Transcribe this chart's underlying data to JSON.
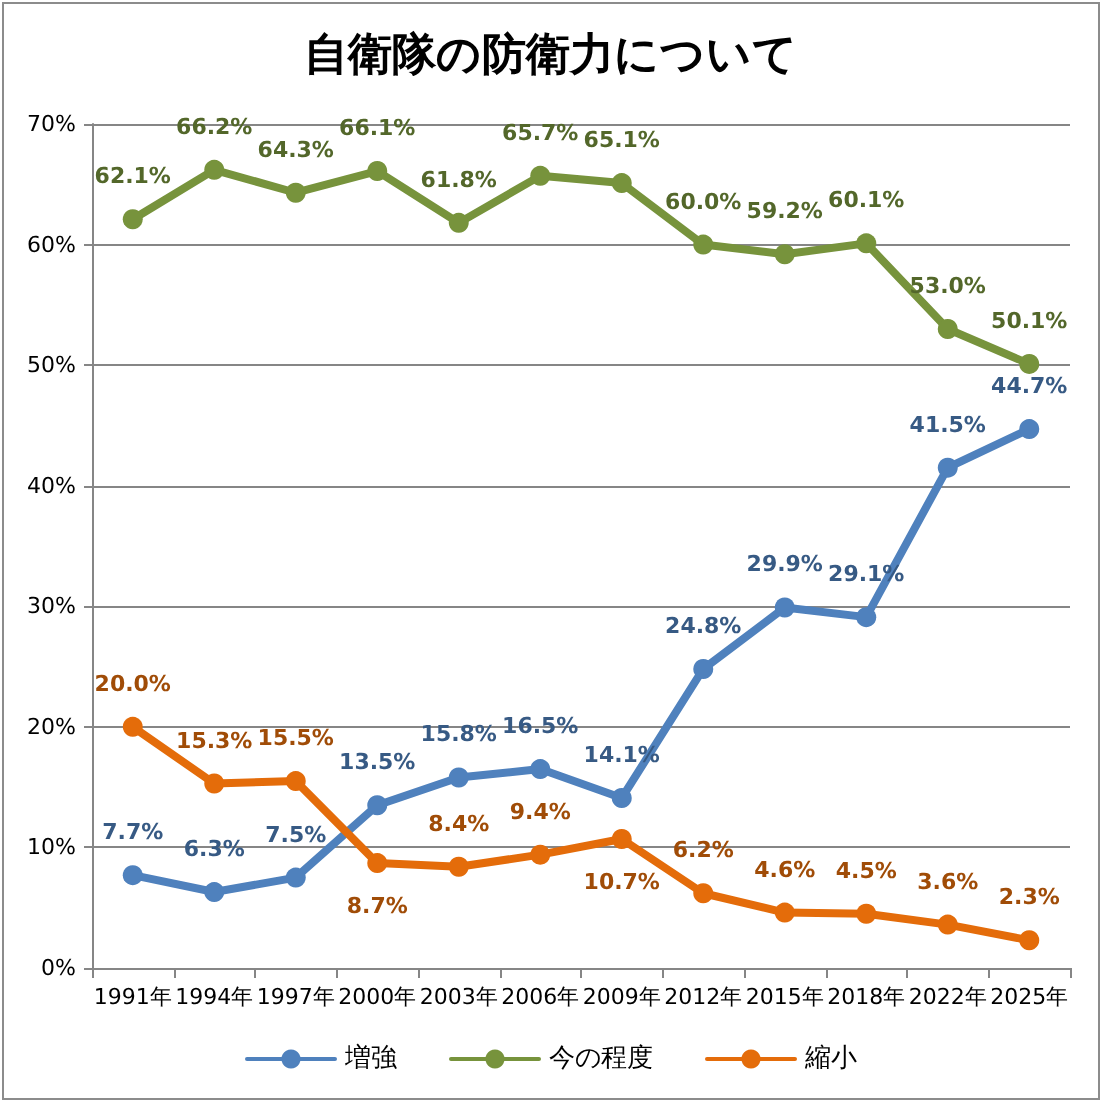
{
  "chart_data": {
    "type": "line",
    "title": "自衛隊の防衛力について",
    "categories": [
      "1991年",
      "1994年",
      "1997年",
      "2000年",
      "2003年",
      "2006年",
      "2009年",
      "2012年",
      "2015年",
      "2018年",
      "2022年",
      "2025年"
    ],
    "series": [
      {
        "name": "増強",
        "color": "#4f81bd",
        "values": [
          7.7,
          6.3,
          7.5,
          13.5,
          15.8,
          16.5,
          14.1,
          24.8,
          29.9,
          29.1,
          41.5,
          44.7
        ],
        "value_labels": [
          "7.7%",
          "6.3%",
          "7.5%",
          "13.5%",
          "15.8%",
          "16.5%",
          "14.1%",
          "24.8%",
          "29.9%",
          "29.1%",
          "41.5%",
          "44.7%"
        ]
      },
      {
        "name": "今の程度",
        "color": "#77933c",
        "values": [
          62.1,
          66.2,
          64.3,
          66.1,
          61.8,
          65.7,
          65.1,
          60.0,
          59.2,
          60.1,
          53.0,
          50.1
        ],
        "value_labels": [
          "62.1%",
          "66.2%",
          "64.3%",
          "66.1%",
          "61.8%",
          "65.7%",
          "65.1%",
          "60.0%",
          "59.2%",
          "60.1%",
          "53.0%",
          "50.1%"
        ]
      },
      {
        "name": "縮小",
        "color": "#e46c0a",
        "values": [
          20.0,
          15.3,
          15.5,
          8.7,
          8.4,
          9.4,
          10.7,
          6.2,
          4.6,
          4.5,
          3.6,
          2.3
        ],
        "value_labels": [
          "20.0%",
          "15.3%",
          "15.5%",
          "8.7%",
          "8.4%",
          "9.4%",
          "10.7%",
          "6.2%",
          "4.6%",
          "4.5%",
          "3.6%",
          "2.3%"
        ]
      }
    ],
    "ylim": [
      0,
      70
    ],
    "yticks": [
      {
        "value": 0,
        "label": "0%"
      },
      {
        "value": 10,
        "label": "10%"
      },
      {
        "value": 20,
        "label": "20%"
      },
      {
        "value": 30,
        "label": "30%"
      },
      {
        "value": 40,
        "label": "40%"
      },
      {
        "value": 50,
        "label": "50%"
      },
      {
        "value": 60,
        "label": "60%"
      },
      {
        "value": 70,
        "label": "70%"
      }
    ],
    "grid": "y",
    "legend": "bottom",
    "marker": "circle",
    "line_style": "solid"
  }
}
